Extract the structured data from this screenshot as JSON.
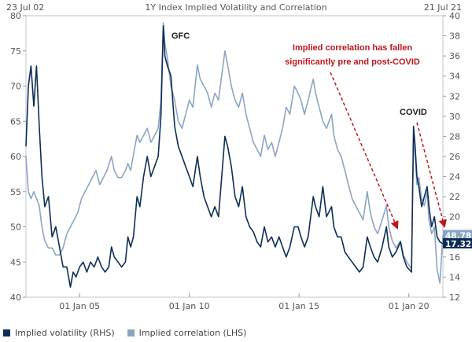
{
  "chart_data": {
    "type": "line",
    "title": "1Y Index Implied Volatility and Correlation",
    "start_label": "23 Jul 02",
    "end_label": "21 Jul 21",
    "x_range": [
      "2002-07-23",
      "2021-07-21"
    ],
    "x_ticks": [
      {
        "label": "01 Jan 05",
        "date": "2005-01-01"
      },
      {
        "label": "01 Jan 10",
        "date": "2010-01-01"
      },
      {
        "label": "01 Jan 15",
        "date": "2015-01-01"
      },
      {
        "label": "01 Jan 20",
        "date": "2020-01-01"
      }
    ],
    "left_axis": {
      "min": 40,
      "max": 80,
      "ticks": [
        "40",
        "45",
        "50",
        "55",
        "60",
        "65",
        "70",
        "75",
        "80"
      ]
    },
    "right_axis": {
      "min": 12,
      "max": 40,
      "ticks": [
        "12",
        "14",
        "16",
        "18",
        "20",
        "22",
        "24",
        "26",
        "28",
        "30",
        "32",
        "34",
        "36",
        "38",
        "40"
      ]
    },
    "grid": false,
    "legend_position": "bottom-left",
    "series": [
      {
        "name": "Implied volatility (RHS)",
        "axis": "right",
        "color": "#0d2d57",
        "last_label": "17.32",
        "points": [
          [
            "2002-07-23",
            27
          ],
          [
            "2002-09-01",
            33
          ],
          [
            "2002-10-15",
            35
          ],
          [
            "2002-12-01",
            31
          ],
          [
            "2003-01-15",
            35
          ],
          [
            "2003-03-01",
            29
          ],
          [
            "2003-04-15",
            24
          ],
          [
            "2003-06-01",
            21
          ],
          [
            "2003-08-01",
            22
          ],
          [
            "2003-10-01",
            18
          ],
          [
            "2003-12-01",
            19
          ],
          [
            "2004-02-01",
            17
          ],
          [
            "2004-04-01",
            15
          ],
          [
            "2004-06-01",
            15
          ],
          [
            "2004-08-01",
            13
          ],
          [
            "2004-09-15",
            14.5
          ],
          [
            "2004-11-01",
            14
          ],
          [
            "2005-01-01",
            15
          ],
          [
            "2005-03-01",
            15.5
          ],
          [
            "2005-05-01",
            14.5
          ],
          [
            "2005-07-01",
            15.5
          ],
          [
            "2005-09-01",
            15
          ],
          [
            "2005-11-01",
            16
          ],
          [
            "2006-01-01",
            15
          ],
          [
            "2006-03-01",
            14.5
          ],
          [
            "2006-05-01",
            15
          ],
          [
            "2006-06-15",
            17
          ],
          [
            "2006-08-01",
            16
          ],
          [
            "2006-10-01",
            15.5
          ],
          [
            "2006-12-01",
            15
          ],
          [
            "2007-02-01",
            15.5
          ],
          [
            "2007-03-15",
            18
          ],
          [
            "2007-05-01",
            17
          ],
          [
            "2007-06-15",
            18
          ],
          [
            "2007-08-15",
            22
          ],
          [
            "2007-10-01",
            21
          ],
          [
            "2007-12-01",
            24
          ],
          [
            "2008-02-01",
            26
          ],
          [
            "2008-04-01",
            24
          ],
          [
            "2008-06-01",
            25
          ],
          [
            "2008-08-01",
            26
          ],
          [
            "2008-09-15",
            30
          ],
          [
            "2008-10-25",
            39
          ],
          [
            "2008-11-20",
            36
          ],
          [
            "2009-01-01",
            35
          ],
          [
            "2009-03-01",
            34
          ],
          [
            "2009-05-01",
            29
          ],
          [
            "2009-07-01",
            27
          ],
          [
            "2009-09-01",
            26
          ],
          [
            "2009-11-01",
            25
          ],
          [
            "2010-01-01",
            24
          ],
          [
            "2010-03-01",
            23
          ],
          [
            "2010-05-15",
            26
          ],
          [
            "2010-07-01",
            24
          ],
          [
            "2010-09-01",
            22
          ],
          [
            "2010-11-01",
            21
          ],
          [
            "2011-01-01",
            20
          ],
          [
            "2011-03-01",
            21
          ],
          [
            "2011-05-01",
            20
          ],
          [
            "2011-08-15",
            28
          ],
          [
            "2011-10-01",
            27
          ],
          [
            "2011-12-01",
            25
          ],
          [
            "2012-02-01",
            22
          ],
          [
            "2012-04-01",
            21
          ],
          [
            "2012-06-01",
            23
          ],
          [
            "2012-08-01",
            20
          ],
          [
            "2012-10-01",
            19
          ],
          [
            "2012-12-01",
            18.5
          ],
          [
            "2013-02-01",
            17.5
          ],
          [
            "2013-04-01",
            17
          ],
          [
            "2013-06-01",
            19
          ],
          [
            "2013-08-01",
            17.5
          ],
          [
            "2013-10-01",
            18
          ],
          [
            "2013-12-01",
            17
          ],
          [
            "2014-02-01",
            18
          ],
          [
            "2014-04-01",
            17
          ],
          [
            "2014-06-01",
            16
          ],
          [
            "2014-08-01",
            17
          ],
          [
            "2014-10-15",
            19
          ],
          [
            "2014-12-15",
            19
          ],
          [
            "2015-02-01",
            18
          ],
          [
            "2015-04-01",
            17
          ],
          [
            "2015-06-01",
            18
          ],
          [
            "2015-08-25",
            22
          ],
          [
            "2015-10-01",
            21
          ],
          [
            "2015-12-01",
            20
          ],
          [
            "2016-02-01",
            23
          ],
          [
            "2016-04-01",
            20
          ],
          [
            "2016-06-25",
            21
          ],
          [
            "2016-08-01",
            19
          ],
          [
            "2016-10-01",
            18
          ],
          [
            "2016-12-01",
            18
          ],
          [
            "2017-02-01",
            16.5
          ],
          [
            "2017-04-01",
            16
          ],
          [
            "2017-06-01",
            15.5
          ],
          [
            "2017-08-01",
            15
          ],
          [
            "2017-10-01",
            14.5
          ],
          [
            "2017-12-01",
            15
          ],
          [
            "2018-02-08",
            18
          ],
          [
            "2018-04-01",
            17
          ],
          [
            "2018-06-01",
            16
          ],
          [
            "2018-08-01",
            15.5
          ],
          [
            "2018-10-15",
            17
          ],
          [
            "2018-12-24",
            19
          ],
          [
            "2019-02-01",
            17
          ],
          [
            "2019-04-01",
            16
          ],
          [
            "2019-06-01",
            16.5
          ],
          [
            "2019-08-15",
            17.5
          ],
          [
            "2019-10-01",
            16
          ],
          [
            "2019-12-01",
            15
          ],
          [
            "2020-02-15",
            14.5
          ],
          [
            "2020-03-20",
            29
          ],
          [
            "2020-04-15",
            27
          ],
          [
            "2020-05-15",
            24
          ],
          [
            "2020-06-15",
            23
          ],
          [
            "2020-08-01",
            21
          ],
          [
            "2020-09-15",
            22
          ],
          [
            "2020-11-01",
            23
          ],
          [
            "2020-12-01",
            21
          ],
          [
            "2021-01-15",
            19
          ],
          [
            "2021-03-01",
            20
          ],
          [
            "2021-04-15",
            18
          ],
          [
            "2021-06-01",
            17.5
          ],
          [
            "2021-07-21",
            17.32
          ]
        ]
      },
      {
        "name": "Implied correlation (LHS)",
        "axis": "left",
        "color": "#8ba5c4",
        "last_label": "48.78",
        "points": [
          [
            "2002-07-23",
            60
          ],
          [
            "2002-09-01",
            55
          ],
          [
            "2002-10-15",
            54
          ],
          [
            "2002-12-01",
            55
          ],
          [
            "2003-01-15",
            54
          ],
          [
            "2003-03-01",
            53
          ],
          [
            "2003-04-15",
            50
          ],
          [
            "2003-06-01",
            48
          ],
          [
            "2003-08-01",
            47
          ],
          [
            "2003-10-01",
            47
          ],
          [
            "2003-12-01",
            46
          ],
          [
            "2004-02-01",
            46
          ],
          [
            "2004-04-01",
            47
          ],
          [
            "2004-06-01",
            49
          ],
          [
            "2004-08-01",
            50
          ],
          [
            "2004-10-01",
            51
          ],
          [
            "2004-12-01",
            52
          ],
          [
            "2005-02-01",
            54
          ],
          [
            "2005-04-01",
            55
          ],
          [
            "2005-06-01",
            56
          ],
          [
            "2005-08-01",
            57
          ],
          [
            "2005-10-01",
            58
          ],
          [
            "2005-12-01",
            56
          ],
          [
            "2006-02-01",
            57
          ],
          [
            "2006-04-01",
            58
          ],
          [
            "2006-06-15",
            60
          ],
          [
            "2006-08-01",
            58
          ],
          [
            "2006-10-01",
            57
          ],
          [
            "2006-12-01",
            57
          ],
          [
            "2007-02-01",
            58
          ],
          [
            "2007-03-15",
            59
          ],
          [
            "2007-05-01",
            58
          ],
          [
            "2007-07-01",
            61
          ],
          [
            "2007-08-15",
            63
          ],
          [
            "2007-10-01",
            62
          ],
          [
            "2007-12-01",
            63
          ],
          [
            "2008-02-01",
            64
          ],
          [
            "2008-04-01",
            62
          ],
          [
            "2008-06-01",
            63
          ],
          [
            "2008-08-01",
            64
          ],
          [
            "2008-09-15",
            68
          ],
          [
            "2008-10-25",
            79
          ],
          [
            "2008-11-20",
            76
          ],
          [
            "2009-01-01",
            74
          ],
          [
            "2009-03-01",
            70
          ],
          [
            "2009-05-01",
            68
          ],
          [
            "2009-07-01",
            65
          ],
          [
            "2009-09-01",
            64
          ],
          [
            "2009-11-01",
            66
          ],
          [
            "2010-01-01",
            68
          ],
          [
            "2010-03-01",
            67
          ],
          [
            "2010-05-15",
            73
          ],
          [
            "2010-07-01",
            71
          ],
          [
            "2010-09-01",
            70
          ],
          [
            "2010-11-01",
            69
          ],
          [
            "2011-01-01",
            67
          ],
          [
            "2011-03-01",
            69
          ],
          [
            "2011-05-01",
            68
          ],
          [
            "2011-08-15",
            75
          ],
          [
            "2011-10-01",
            73
          ],
          [
            "2011-12-01",
            70
          ],
          [
            "2012-02-01",
            68
          ],
          [
            "2012-04-01",
            67
          ],
          [
            "2012-06-01",
            69
          ],
          [
            "2012-08-01",
            66
          ],
          [
            "2012-10-01",
            64
          ],
          [
            "2012-12-01",
            62
          ],
          [
            "2013-02-01",
            61
          ],
          [
            "2013-04-01",
            60
          ],
          [
            "2013-06-01",
            63
          ],
          [
            "2013-08-01",
            61
          ],
          [
            "2013-10-01",
            62
          ],
          [
            "2013-12-01",
            60
          ],
          [
            "2014-02-01",
            62
          ],
          [
            "2014-04-01",
            64
          ],
          [
            "2014-06-01",
            67
          ],
          [
            "2014-08-01",
            66
          ],
          [
            "2014-10-15",
            70
          ],
          [
            "2014-12-15",
            69
          ],
          [
            "2015-02-01",
            68
          ],
          [
            "2015-04-01",
            66
          ],
          [
            "2015-06-01",
            68
          ],
          [
            "2015-08-25",
            71
          ],
          [
            "2015-10-01",
            69
          ],
          [
            "2015-12-01",
            67
          ],
          [
            "2016-02-01",
            65
          ],
          [
            "2016-04-01",
            64
          ],
          [
            "2016-06-25",
            66
          ],
          [
            "2016-08-01",
            63
          ],
          [
            "2016-10-01",
            61
          ],
          [
            "2016-12-01",
            60
          ],
          [
            "2017-02-01",
            58
          ],
          [
            "2017-04-01",
            56
          ],
          [
            "2017-06-01",
            54
          ],
          [
            "2017-08-01",
            53
          ],
          [
            "2017-10-01",
            52
          ],
          [
            "2017-12-01",
            51
          ],
          [
            "2018-02-08",
            55
          ],
          [
            "2018-04-01",
            52
          ],
          [
            "2018-06-01",
            50
          ],
          [
            "2018-08-01",
            49
          ],
          [
            "2018-10-15",
            51
          ],
          [
            "2018-12-24",
            53
          ],
          [
            "2019-02-01",
            50
          ],
          [
            "2019-04-01",
            48
          ],
          [
            "2019-06-01",
            47
          ],
          [
            "2019-08-15",
            48
          ],
          [
            "2019-10-01",
            46
          ],
          [
            "2019-12-01",
            45
          ],
          [
            "2020-02-15",
            44
          ],
          [
            "2020-03-20",
            63
          ],
          [
            "2020-04-15",
            60
          ],
          [
            "2020-05-15",
            56
          ],
          [
            "2020-06-15",
            57
          ],
          [
            "2020-08-01",
            54
          ],
          [
            "2020-09-15",
            53
          ],
          [
            "2020-11-01",
            55
          ],
          [
            "2020-12-01",
            51
          ],
          [
            "2021-01-15",
            49
          ],
          [
            "2021-03-01",
            50
          ],
          [
            "2021-04-15",
            44
          ],
          [
            "2021-06-01",
            42
          ],
          [
            "2021-07-21",
            48.78
          ]
        ]
      }
    ],
    "annotations": [
      {
        "text": "GFC",
        "color": "#1a1a1a"
      },
      {
        "text": "COVID",
        "color": "#1a1a1a"
      },
      {
        "text": "Implied correlation has fallen\nsignificantly pre and post-COVID",
        "color": "#c0151b"
      }
    ]
  }
}
